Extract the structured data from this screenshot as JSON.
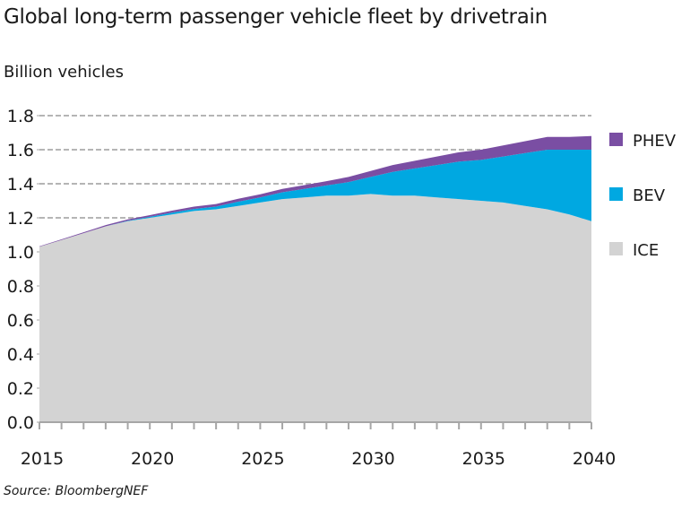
{
  "chart_data": {
    "type": "area",
    "stacked": true,
    "title": "Global long-term passenger vehicle fleet by drivetrain",
    "ylabel": "Billion vehicles",
    "xlabel": "",
    "source": "Source: BloombergNEF",
    "ylim": [
      0,
      1.8
    ],
    "xlim": [
      2015,
      2040
    ],
    "yticks": [
      "0.0",
      "0.2",
      "0.4",
      "0.6",
      "0.8",
      "1.0",
      "1.2",
      "1.4",
      "1.6",
      "1.8"
    ],
    "xticks": [
      "2015",
      "2020",
      "2025",
      "2030",
      "2035",
      "2040"
    ],
    "grid": "horizontal dashed above 1.0",
    "legend_position": "right",
    "x": [
      2015,
      2016,
      2017,
      2018,
      2019,
      2020,
      2021,
      2022,
      2023,
      2024,
      2025,
      2026,
      2027,
      2028,
      2029,
      2030,
      2031,
      2032,
      2033,
      2034,
      2035,
      2036,
      2037,
      2038,
      2039,
      2040
    ],
    "series": [
      {
        "name": "ICE",
        "color": "#d3d3d3",
        "values": [
          1.03,
          1.07,
          1.11,
          1.15,
          1.18,
          1.2,
          1.22,
          1.24,
          1.25,
          1.27,
          1.29,
          1.31,
          1.32,
          1.33,
          1.33,
          1.34,
          1.33,
          1.33,
          1.32,
          1.31,
          1.3,
          1.29,
          1.27,
          1.25,
          1.22,
          1.18
        ]
      },
      {
        "name": "BEV",
        "color": "#00a8e1",
        "values": [
          0.0,
          0.0,
          0.0,
          0.0,
          0.003,
          0.006,
          0.01,
          0.012,
          0.016,
          0.025,
          0.03,
          0.04,
          0.05,
          0.06,
          0.08,
          0.1,
          0.14,
          0.16,
          0.19,
          0.22,
          0.24,
          0.27,
          0.31,
          0.35,
          0.38,
          0.42
        ]
      },
      {
        "name": "PHEV",
        "color": "#7a4ea3",
        "values": [
          0.003,
          0.004,
          0.005,
          0.007,
          0.008,
          0.01,
          0.012,
          0.014,
          0.015,
          0.017,
          0.018,
          0.02,
          0.022,
          0.025,
          0.03,
          0.035,
          0.04,
          0.045,
          0.05,
          0.055,
          0.06,
          0.065,
          0.07,
          0.075,
          0.075,
          0.08
        ]
      }
    ],
    "legend": [
      {
        "name": "PHEV",
        "color": "#7a4ea3"
      },
      {
        "name": "BEV",
        "color": "#00a8e1"
      },
      {
        "name": "ICE",
        "color": "#d3d3d3"
      }
    ]
  }
}
